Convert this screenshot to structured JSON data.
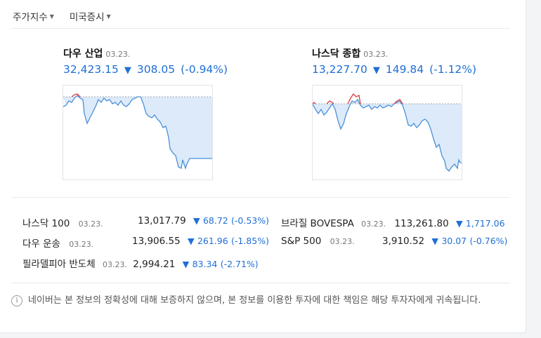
{
  "tabs": [
    {
      "label": "주가지수"
    },
    {
      "label": "미국증시"
    }
  ],
  "dow": {
    "name": "다우 산업",
    "date": "03.23.",
    "value": "32,423.15",
    "arrow": "▼",
    "change": "308.05",
    "pct": "(-0.94%)"
  },
  "nasdaq": {
    "name": "나스닥 종합",
    "date": "03.23.",
    "value": "13,227.70",
    "arrow": "▼",
    "change": "149.84",
    "pct": "(-1.12%)"
  },
  "list": [
    {
      "name": "나스닥 100",
      "date": "03.23.",
      "value": "13,017.79",
      "arrow": "▼",
      "change": "68.72",
      "pct": "(-0.53%)"
    },
    {
      "name": "다우 운송",
      "date": "03.23.",
      "value": "13,906.55",
      "arrow": "▼",
      "change": "261.96",
      "pct": "(-1.85%)"
    },
    {
      "name": "필라델피아 반도체",
      "date": "03.23.",
      "value": "2,994.21",
      "arrow": "▼",
      "change": "83.34",
      "pct": "(-2.71%)"
    },
    {
      "name": "브라질 BOVESPA",
      "date": "03.23.",
      "value": "113,261.80",
      "arrow": "▼",
      "change": "1,717.06",
      "pct": ""
    },
    {
      "name": "S&P 500",
      "date": "03.23.",
      "value": "3,910.52",
      "arrow": "▼",
      "change": "30.07",
      "pct": "(-0.76%)"
    }
  ],
  "notice": "네이버는 본 정보의 정확성에 대해 보증하지 않으며, 본 정보를 이용한 투자에 대한 책임은 해당 투자자에게 귀속됩니다.",
  "colors": {
    "down": "#1f6fd6",
    "up": "#e03c3c",
    "fill": "#d6e7fa"
  }
}
